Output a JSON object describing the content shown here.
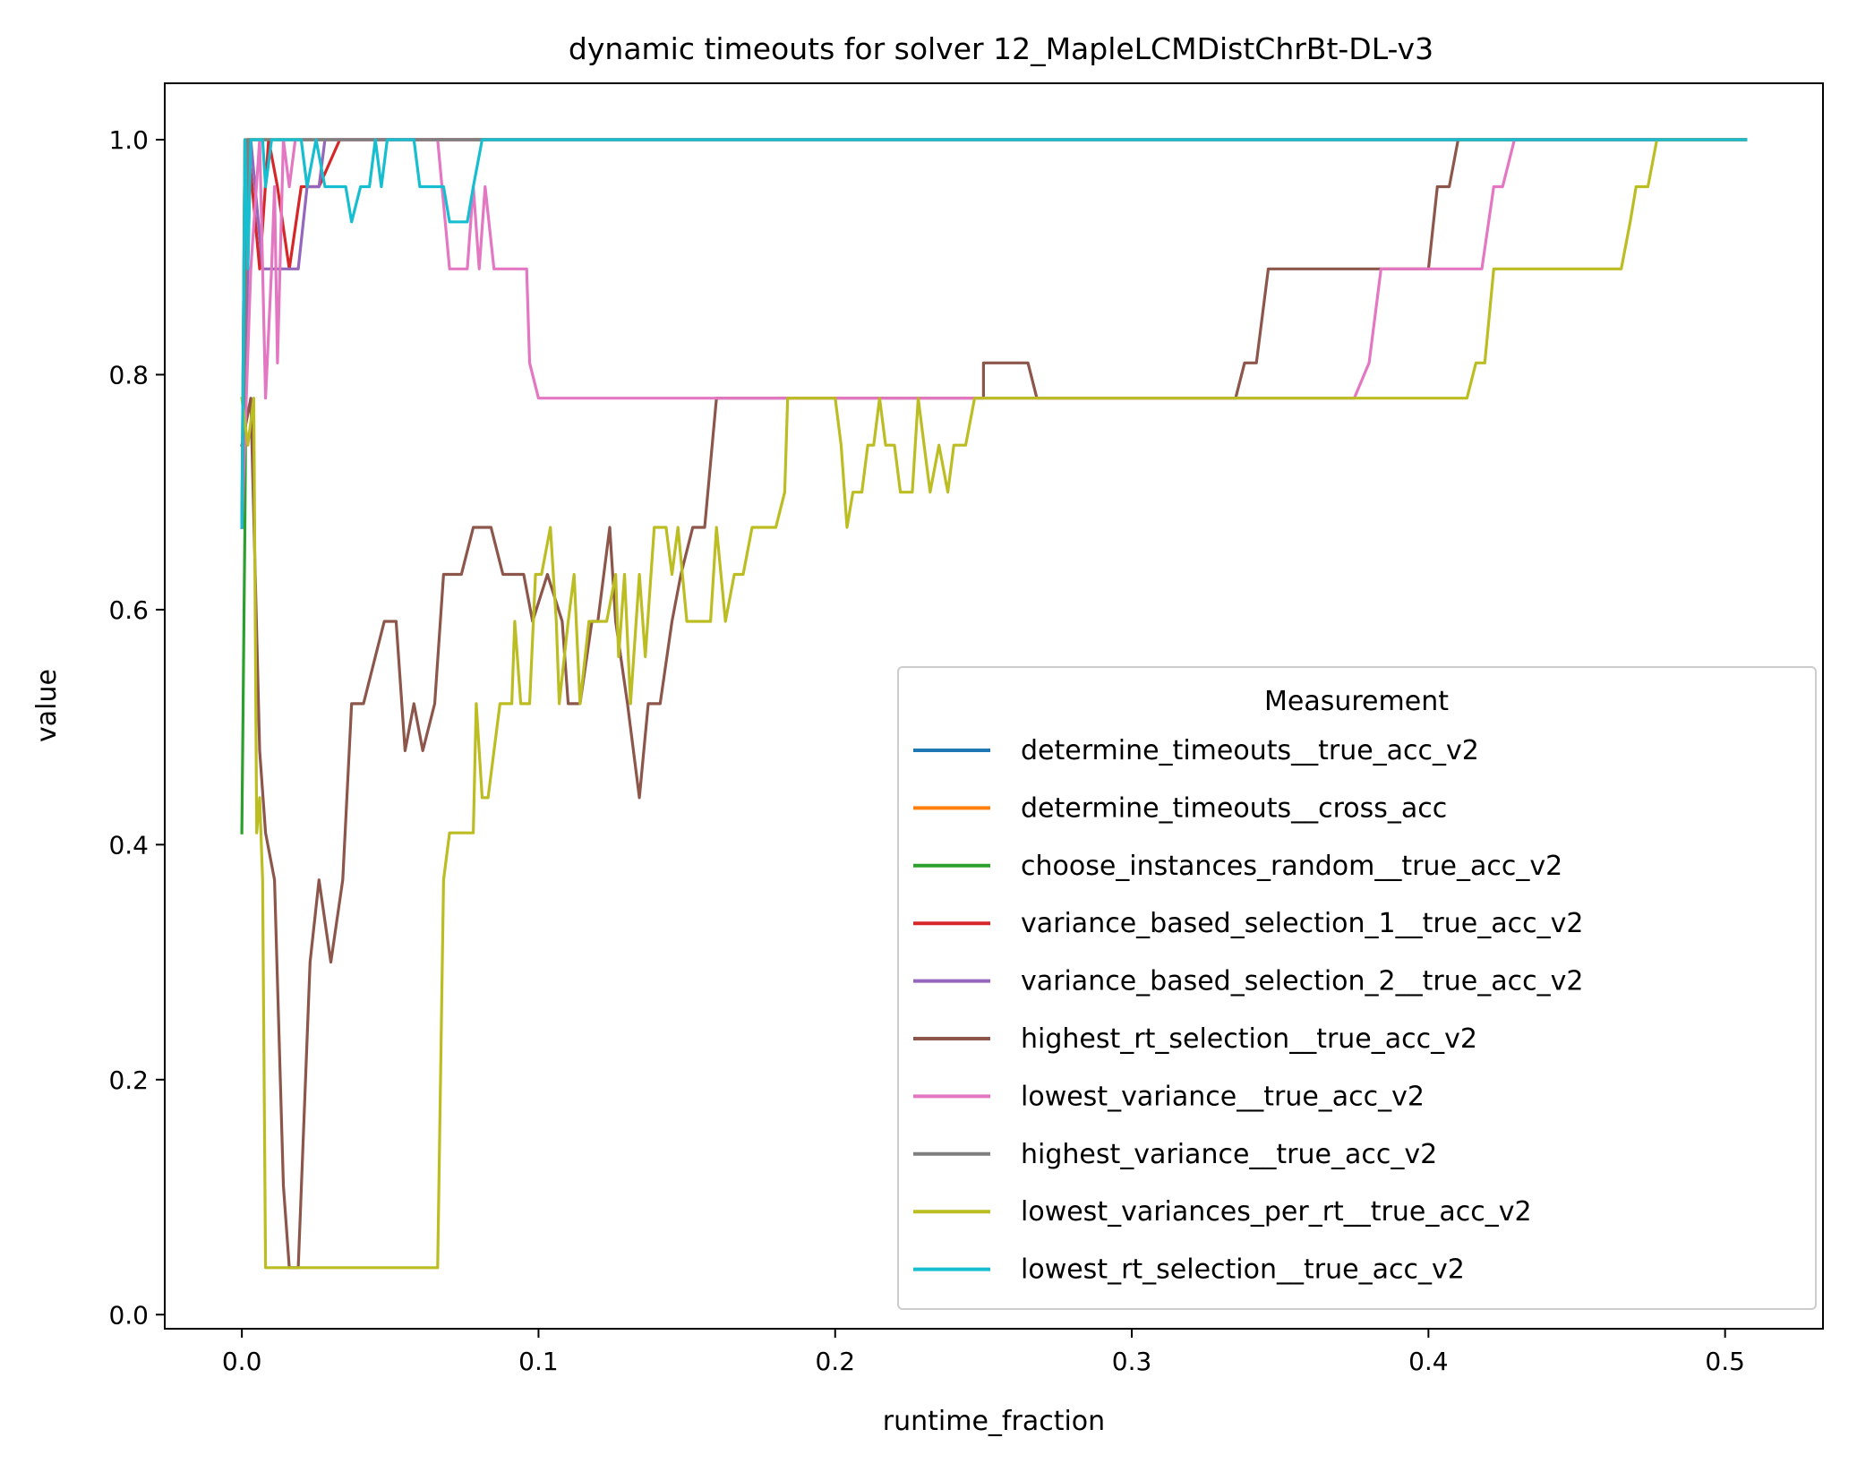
{
  "chart_data": {
    "type": "line",
    "title": "dynamic timeouts for solver 12_MapleLCMDistChrBt-DL-v3",
    "xlabel": "runtime_fraction",
    "ylabel": "value",
    "xlim": [
      -0.026,
      0.533
    ],
    "ylim": [
      -0.012,
      1.048
    ],
    "xticks": [
      0.0,
      0.1,
      0.2,
      0.3,
      0.4,
      0.5
    ],
    "xtick_labels": [
      "0.0",
      "0.1",
      "0.2",
      "0.3",
      "0.4",
      "0.5"
    ],
    "yticks": [
      0.0,
      0.2,
      0.4,
      0.6,
      0.8,
      1.0
    ],
    "ytick_labels": [
      "0.0",
      "0.2",
      "0.4",
      "0.6",
      "0.8",
      "1.0"
    ],
    "grid": false,
    "legend": {
      "title": "Measurement",
      "placement": "lower-right"
    },
    "series": [
      {
        "name": "determine_timeouts__true_acc_v2",
        "color": "#1f77b4",
        "points": [
          [
            0.0,
            0.67
          ],
          [
            0.001,
            1.0
          ],
          [
            0.507,
            1.0
          ]
        ]
      },
      {
        "name": "determine_timeouts__cross_acc",
        "color": "#ff7f0e",
        "points": [
          [
            0.0,
            0.67
          ],
          [
            0.001,
            1.0
          ],
          [
            0.507,
            1.0
          ]
        ]
      },
      {
        "name": "choose_instances_random__true_acc_v2",
        "color": "#2ca02c",
        "points": [
          [
            0.0,
            0.41
          ],
          [
            0.001,
            0.67
          ],
          [
            0.002,
            1.0
          ],
          [
            0.507,
            1.0
          ]
        ]
      },
      {
        "name": "variance_based_selection_1__true_acc_v2",
        "color": "#d62728",
        "points": [
          [
            0.0,
            0.67
          ],
          [
            0.002,
            1.0
          ],
          [
            0.006,
            0.89
          ],
          [
            0.009,
            1.0
          ],
          [
            0.012,
            0.96
          ],
          [
            0.016,
            0.89
          ],
          [
            0.02,
            0.96
          ],
          [
            0.026,
            0.96
          ],
          [
            0.033,
            1.0
          ],
          [
            0.507,
            1.0
          ]
        ]
      },
      {
        "name": "variance_based_selection_2__true_acc_v2",
        "color": "#9467bd",
        "points": [
          [
            0.0,
            0.67
          ],
          [
            0.003,
            1.0
          ],
          [
            0.007,
            0.89
          ],
          [
            0.011,
            0.89
          ],
          [
            0.019,
            0.89
          ],
          [
            0.022,
            0.96
          ],
          [
            0.026,
            0.96
          ],
          [
            0.028,
            1.0
          ],
          [
            0.507,
            1.0
          ]
        ]
      },
      {
        "name": "highest_rt_selection__true_acc_v2",
        "color": "#8c564b",
        "points": [
          [
            0.0,
            0.74
          ],
          [
            0.003,
            0.78
          ],
          [
            0.006,
            0.48
          ],
          [
            0.008,
            0.41
          ],
          [
            0.011,
            0.37
          ],
          [
            0.014,
            0.11
          ],
          [
            0.016,
            0.04
          ],
          [
            0.019,
            0.04
          ],
          [
            0.023,
            0.3
          ],
          [
            0.026,
            0.37
          ],
          [
            0.03,
            0.3
          ],
          [
            0.034,
            0.37
          ],
          [
            0.037,
            0.52
          ],
          [
            0.041,
            0.52
          ],
          [
            0.045,
            0.56
          ],
          [
            0.048,
            0.59
          ],
          [
            0.052,
            0.59
          ],
          [
            0.055,
            0.48
          ],
          [
            0.058,
            0.52
          ],
          [
            0.061,
            0.48
          ],
          [
            0.065,
            0.52
          ],
          [
            0.068,
            0.63
          ],
          [
            0.074,
            0.63
          ],
          [
            0.078,
            0.67
          ],
          [
            0.084,
            0.67
          ],
          [
            0.088,
            0.63
          ],
          [
            0.095,
            0.63
          ],
          [
            0.098,
            0.59
          ],
          [
            0.103,
            0.63
          ],
          [
            0.108,
            0.59
          ],
          [
            0.11,
            0.52
          ],
          [
            0.114,
            0.52
          ],
          [
            0.118,
            0.59
          ],
          [
            0.12,
            0.59
          ],
          [
            0.124,
            0.67
          ],
          [
            0.126,
            0.59
          ],
          [
            0.13,
            0.52
          ],
          [
            0.134,
            0.44
          ],
          [
            0.137,
            0.52
          ],
          [
            0.141,
            0.52
          ],
          [
            0.145,
            0.59
          ],
          [
            0.148,
            0.63
          ],
          [
            0.152,
            0.67
          ],
          [
            0.156,
            0.67
          ],
          [
            0.16,
            0.78
          ],
          [
            0.25,
            0.78
          ],
          [
            0.25,
            0.81
          ],
          [
            0.255,
            0.81
          ],
          [
            0.26,
            0.81
          ],
          [
            0.265,
            0.81
          ],
          [
            0.268,
            0.78
          ],
          [
            0.335,
            0.78
          ],
          [
            0.338,
            0.81
          ],
          [
            0.342,
            0.81
          ],
          [
            0.346,
            0.89
          ],
          [
            0.4,
            0.89
          ],
          [
            0.403,
            0.96
          ],
          [
            0.407,
            0.96
          ],
          [
            0.41,
            1.0
          ],
          [
            0.507,
            1.0
          ]
        ]
      },
      {
        "name": "lowest_variance__true_acc_v2",
        "color": "#e377c2",
        "points": [
          [
            0.0,
            0.67
          ],
          [
            0.003,
            0.89
          ],
          [
            0.006,
            1.0
          ],
          [
            0.008,
            0.78
          ],
          [
            0.01,
            0.89
          ],
          [
            0.011,
            0.96
          ],
          [
            0.012,
            0.81
          ],
          [
            0.014,
            1.0
          ],
          [
            0.016,
            0.96
          ],
          [
            0.018,
            1.0
          ],
          [
            0.066,
            1.0
          ],
          [
            0.07,
            0.89
          ],
          [
            0.076,
            0.89
          ],
          [
            0.078,
            0.96
          ],
          [
            0.08,
            0.89
          ],
          [
            0.082,
            0.96
          ],
          [
            0.085,
            0.89
          ],
          [
            0.096,
            0.89
          ],
          [
            0.097,
            0.81
          ],
          [
            0.1,
            0.78
          ],
          [
            0.375,
            0.78
          ],
          [
            0.38,
            0.81
          ],
          [
            0.384,
            0.89
          ],
          [
            0.418,
            0.89
          ],
          [
            0.422,
            0.96
          ],
          [
            0.425,
            0.96
          ],
          [
            0.429,
            1.0
          ],
          [
            0.507,
            1.0
          ]
        ]
      },
      {
        "name": "highest_variance__true_acc_v2",
        "color": "#7f7f7f",
        "points": [
          [
            0.0,
            0.67
          ],
          [
            0.002,
            1.0
          ],
          [
            0.507,
            1.0
          ]
        ]
      },
      {
        "name": "lowest_variances_per_rt__true_acc_v2",
        "color": "#bcbd22",
        "points": [
          [
            0.0,
            0.78
          ],
          [
            0.002,
            0.74
          ],
          [
            0.004,
            0.78
          ],
          [
            0.005,
            0.41
          ],
          [
            0.006,
            0.44
          ],
          [
            0.007,
            0.37
          ],
          [
            0.008,
            0.04
          ],
          [
            0.066,
            0.04
          ],
          [
            0.068,
            0.37
          ],
          [
            0.07,
            0.41
          ],
          [
            0.078,
            0.41
          ],
          [
            0.079,
            0.52
          ],
          [
            0.081,
            0.44
          ],
          [
            0.083,
            0.44
          ],
          [
            0.087,
            0.52
          ],
          [
            0.091,
            0.52
          ],
          [
            0.092,
            0.59
          ],
          [
            0.094,
            0.52
          ],
          [
            0.097,
            0.52
          ],
          [
            0.099,
            0.63
          ],
          [
            0.101,
            0.63
          ],
          [
            0.104,
            0.67
          ],
          [
            0.106,
            0.59
          ],
          [
            0.107,
            0.52
          ],
          [
            0.11,
            0.59
          ],
          [
            0.112,
            0.63
          ],
          [
            0.114,
            0.52
          ],
          [
            0.117,
            0.59
          ],
          [
            0.123,
            0.59
          ],
          [
            0.126,
            0.63
          ],
          [
            0.127,
            0.56
          ],
          [
            0.129,
            0.63
          ],
          [
            0.131,
            0.52
          ],
          [
            0.134,
            0.63
          ],
          [
            0.136,
            0.56
          ],
          [
            0.139,
            0.67
          ],
          [
            0.143,
            0.67
          ],
          [
            0.145,
            0.63
          ],
          [
            0.147,
            0.67
          ],
          [
            0.15,
            0.59
          ],
          [
            0.158,
            0.59
          ],
          [
            0.16,
            0.67
          ],
          [
            0.163,
            0.59
          ],
          [
            0.166,
            0.63
          ],
          [
            0.169,
            0.63
          ],
          [
            0.172,
            0.67
          ],
          [
            0.18,
            0.67
          ],
          [
            0.183,
            0.7
          ],
          [
            0.184,
            0.78
          ],
          [
            0.2,
            0.78
          ],
          [
            0.202,
            0.74
          ],
          [
            0.204,
            0.67
          ],
          [
            0.206,
            0.7
          ],
          [
            0.209,
            0.7
          ],
          [
            0.211,
            0.74
          ],
          [
            0.213,
            0.74
          ],
          [
            0.215,
            0.78
          ],
          [
            0.217,
            0.74
          ],
          [
            0.22,
            0.74
          ],
          [
            0.222,
            0.7
          ],
          [
            0.226,
            0.7
          ],
          [
            0.228,
            0.78
          ],
          [
            0.23,
            0.74
          ],
          [
            0.232,
            0.7
          ],
          [
            0.235,
            0.74
          ],
          [
            0.238,
            0.7
          ],
          [
            0.24,
            0.74
          ],
          [
            0.244,
            0.74
          ],
          [
            0.247,
            0.78
          ],
          [
            0.413,
            0.78
          ],
          [
            0.416,
            0.81
          ],
          [
            0.419,
            0.81
          ],
          [
            0.422,
            0.89
          ],
          [
            0.465,
            0.89
          ],
          [
            0.468,
            0.93
          ],
          [
            0.47,
            0.96
          ],
          [
            0.474,
            0.96
          ],
          [
            0.477,
            1.0
          ],
          [
            0.507,
            1.0
          ]
        ]
      },
      {
        "name": "lowest_rt_selection__true_acc_v2",
        "color": "#17becf",
        "points": [
          [
            0.0,
            0.67
          ],
          [
            0.001,
            1.0
          ],
          [
            0.002,
            0.89
          ],
          [
            0.003,
            1.0
          ],
          [
            0.007,
            1.0
          ],
          [
            0.008,
            0.96
          ],
          [
            0.01,
            1.0
          ],
          [
            0.02,
            1.0
          ],
          [
            0.022,
            0.96
          ],
          [
            0.025,
            1.0
          ],
          [
            0.028,
            0.96
          ],
          [
            0.035,
            0.96
          ],
          [
            0.037,
            0.93
          ],
          [
            0.04,
            0.96
          ],
          [
            0.043,
            0.96
          ],
          [
            0.045,
            1.0
          ],
          [
            0.047,
            0.96
          ],
          [
            0.049,
            1.0
          ],
          [
            0.058,
            1.0
          ],
          [
            0.06,
            0.96
          ],
          [
            0.068,
            0.96
          ],
          [
            0.07,
            0.93
          ],
          [
            0.076,
            0.93
          ],
          [
            0.078,
            0.96
          ],
          [
            0.081,
            1.0
          ],
          [
            0.507,
            1.0
          ]
        ]
      }
    ]
  }
}
